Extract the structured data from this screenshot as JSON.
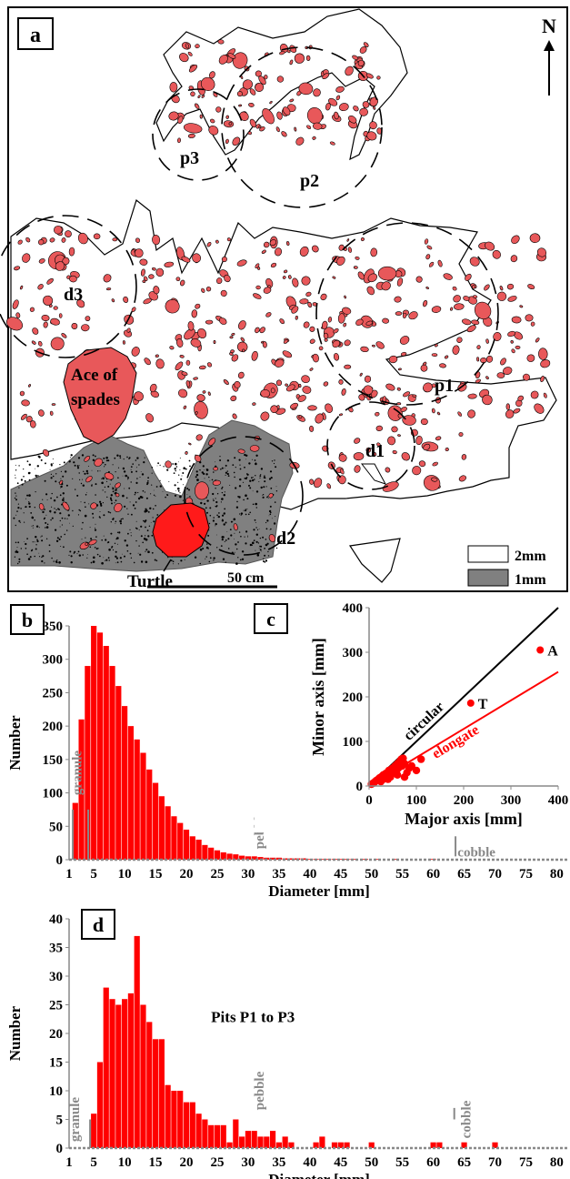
{
  "panel_a": {
    "panel_label": "a",
    "north_label": "N",
    "cluster_labels": {
      "p1": "p1",
      "p2": "p2",
      "p3": "p3",
      "d1": "d1",
      "d2": "d2",
      "d3": "d3"
    },
    "named_clasts": {
      "ace_line1": "Ace of",
      "ace_line2": "spades",
      "turtle": "Turtle"
    },
    "scale_bar_label": "50 cm",
    "legend": [
      {
        "label": "2mm",
        "color": "#ffffff"
      },
      {
        "label": "1mm",
        "color": "#808080"
      }
    ],
    "colors": {
      "clast": "#e8585a",
      "fine_area": "#808080"
    }
  },
  "chart_data": [
    {
      "panel": "b",
      "type": "bar",
      "xlabel": "Diameter [mm]",
      "ylabel": "Number",
      "xlim": [
        1,
        82
      ],
      "ylim": [
        0,
        350
      ],
      "x_ticks": [
        1,
        5,
        10,
        15,
        20,
        25,
        30,
        35,
        40,
        45,
        50,
        55,
        60,
        65,
        70,
        75,
        80
      ],
      "y_ticks": [
        0,
        50,
        100,
        150,
        200,
        250,
        300,
        350
      ],
      "x": [
        2,
        3,
        4,
        5,
        6,
        7,
        8,
        9,
        10,
        11,
        12,
        13,
        14,
        15,
        16,
        17,
        18,
        19,
        20,
        21,
        22,
        23,
        24,
        25,
        26,
        27,
        28,
        29,
        30,
        31,
        32,
        33,
        34,
        35,
        36,
        37,
        38,
        39,
        40,
        41,
        42,
        43,
        44,
        45,
        46,
        47,
        48,
        49,
        50,
        51,
        52,
        53,
        54,
        55,
        56,
        57,
        58,
        59,
        60,
        61,
        62,
        63,
        64,
        65,
        66,
        67,
        68,
        69,
        70,
        71,
        72,
        73,
        74,
        75,
        76,
        77,
        78,
        79,
        80
      ],
      "values": [
        85,
        210,
        290,
        350,
        340,
        320,
        290,
        260,
        230,
        200,
        180,
        160,
        135,
        115,
        95,
        80,
        65,
        55,
        45,
        35,
        30,
        22,
        18,
        14,
        11,
        9,
        8,
        6,
        5,
        5,
        4,
        3,
        3,
        3,
        2,
        2,
        2,
        2,
        1,
        1,
        1,
        1,
        1,
        1,
        1,
        1,
        0,
        1,
        0,
        1,
        0,
        0,
        1,
        0,
        0,
        0,
        0,
        0,
        1,
        0,
        0,
        0,
        0,
        0,
        0,
        0,
        0,
        0,
        0,
        0,
        0,
        0,
        0,
        0,
        0,
        0,
        0,
        0,
        0
      ],
      "series_color": "#ff0000",
      "grain_classes": [
        {
          "label": "granule",
          "boundary": 2,
          "label_x": 3,
          "label_y": 130
        },
        {
          "label": "pebble",
          "boundary": 4,
          "label_x": 32.5,
          "label_y": 45
        },
        {
          "label": "cobble",
          "boundary": 64,
          "label_x": 67,
          "label_y": 5
        }
      ]
    },
    {
      "panel": "c",
      "type": "scatter",
      "xlabel": "Major axis [mm]",
      "ylabel": "Minor axis [mm]",
      "xlim": [
        0,
        400
      ],
      "ylim": [
        0,
        400
      ],
      "x_ticks": [
        0,
        100,
        200,
        300,
        400
      ],
      "y_ticks": [
        0,
        100,
        200,
        300,
        400
      ],
      "points": [
        [
          5,
          4
        ],
        [
          8,
          6
        ],
        [
          10,
          7
        ],
        [
          12,
          9
        ],
        [
          15,
          12
        ],
        [
          18,
          14
        ],
        [
          20,
          15
        ],
        [
          22,
          18
        ],
        [
          25,
          20
        ],
        [
          28,
          22
        ],
        [
          30,
          25
        ],
        [
          32,
          20
        ],
        [
          35,
          28
        ],
        [
          38,
          30
        ],
        [
          40,
          25
        ],
        [
          42,
          35
        ],
        [
          45,
          30
        ],
        [
          48,
          38
        ],
        [
          50,
          40
        ],
        [
          52,
          30
        ],
        [
          55,
          45
        ],
        [
          58,
          35
        ],
        [
          60,
          50
        ],
        [
          62,
          40
        ],
        [
          65,
          55
        ],
        [
          68,
          60
        ],
        [
          70,
          45
        ],
        [
          72,
          62
        ],
        [
          75,
          50
        ],
        [
          80,
          30
        ],
        [
          85,
          40
        ],
        [
          90,
          45
        ],
        [
          100,
          35
        ],
        [
          110,
          60
        ],
        [
          30,
          15
        ],
        [
          45,
          20
        ],
        [
          60,
          25
        ],
        [
          75,
          20
        ],
        [
          25,
          10
        ],
        [
          40,
          15
        ]
      ],
      "labeled_points": [
        {
          "label": "A",
          "x": 362,
          "y": 305
        },
        {
          "label": "T",
          "x": 215,
          "y": 186
        }
      ],
      "reference_lines": [
        {
          "label": "circular",
          "slope": 1.0,
          "color": "#000000"
        },
        {
          "label": "elongate",
          "slope": 0.64,
          "color": "#ff0000"
        }
      ],
      "series_color": "#ff0000"
    },
    {
      "panel": "d",
      "type": "bar",
      "title": "Pits P1 to P3",
      "xlabel": "Diameter [mm]",
      "ylabel": "Number",
      "xlim": [
        1,
        82
      ],
      "ylim": [
        0,
        40
      ],
      "x_ticks": [
        1,
        5,
        10,
        15,
        20,
        25,
        30,
        35,
        40,
        45,
        50,
        55,
        60,
        65,
        70,
        75,
        80
      ],
      "y_ticks": [
        0,
        5,
        10,
        15,
        20,
        25,
        30,
        35,
        40
      ],
      "x": [
        5,
        6,
        7,
        8,
        9,
        10,
        11,
        12,
        13,
        14,
        15,
        16,
        17,
        18,
        19,
        20,
        21,
        22,
        23,
        24,
        25,
        26,
        27,
        28,
        29,
        30,
        31,
        32,
        33,
        34,
        35,
        36,
        37,
        38,
        39,
        40,
        41,
        42,
        43,
        44,
        45,
        46,
        47,
        48,
        49,
        50,
        51,
        52,
        53,
        54,
        55,
        56,
        57,
        58,
        59,
        60,
        61,
        62,
        63,
        64,
        65,
        66,
        67,
        68,
        69,
        70
      ],
      "values": [
        6,
        15,
        28,
        26,
        25,
        26,
        27,
        37,
        25,
        22,
        19,
        19,
        11,
        10,
        10,
        8,
        8,
        6,
        5,
        4,
        4,
        4,
        1,
        5,
        2,
        3,
        3,
        2,
        2,
        3,
        1,
        2,
        1,
        0,
        0,
        0,
        1,
        2,
        0,
        1,
        1,
        1,
        0,
        0,
        0,
        1,
        0,
        0,
        0,
        0,
        0,
        0,
        0,
        0,
        0,
        1,
        1,
        0,
        0,
        0,
        1,
        0,
        0,
        0,
        0,
        1
      ],
      "series_color": "#ff0000",
      "grain_classes": [
        {
          "label": "granule",
          "boundary": 4,
          "label_x": 2.6,
          "label_y": 5
        },
        {
          "label": "pebble",
          "boundary": 4,
          "label_x": 32.5,
          "label_y": 10
        },
        {
          "label": "cobble",
          "boundary": 64,
          "label_x": 66,
          "label_y": 5
        }
      ]
    }
  ]
}
